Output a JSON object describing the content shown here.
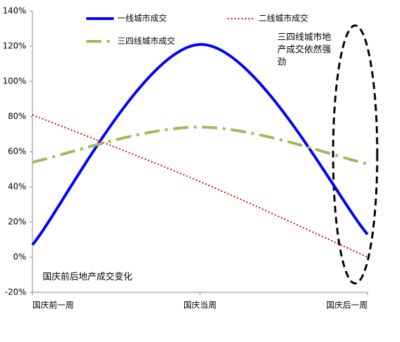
{
  "chart_data": {
    "type": "line",
    "categories": [
      "国庆前一周",
      "国庆当周",
      "国庆后一周"
    ],
    "series": [
      {
        "name": "一线城市成交",
        "color": "#0000ff",
        "values": [
          7,
          121,
          13
        ]
      },
      {
        "name": "二线城市成交",
        "color": "#e00000",
        "values": [
          81,
          43,
          0
        ]
      },
      {
        "name": "三四线城市成交",
        "color": "#9bbb59",
        "values": [
          54,
          74,
          53
        ]
      }
    ],
    "ylim": [
      -20,
      140
    ],
    "yticks": [
      {
        "value": -20,
        "label": "-20%"
      },
      {
        "value": 0,
        "label": "0%"
      },
      {
        "value": 20,
        "label": "20%"
      },
      {
        "value": 40,
        "label": "40%"
      },
      {
        "value": 60,
        "label": "60%"
      },
      {
        "value": 80,
        "label": "80%"
      },
      {
        "value": 100,
        "label": "100%"
      },
      {
        "value": 120,
        "label": "120%"
      },
      {
        "value": 140,
        "label": "140%"
      }
    ],
    "subtitle": "国庆前后地产成交变化",
    "annotation": "三四线城市地产成交依然强劲",
    "smooth": true
  }
}
